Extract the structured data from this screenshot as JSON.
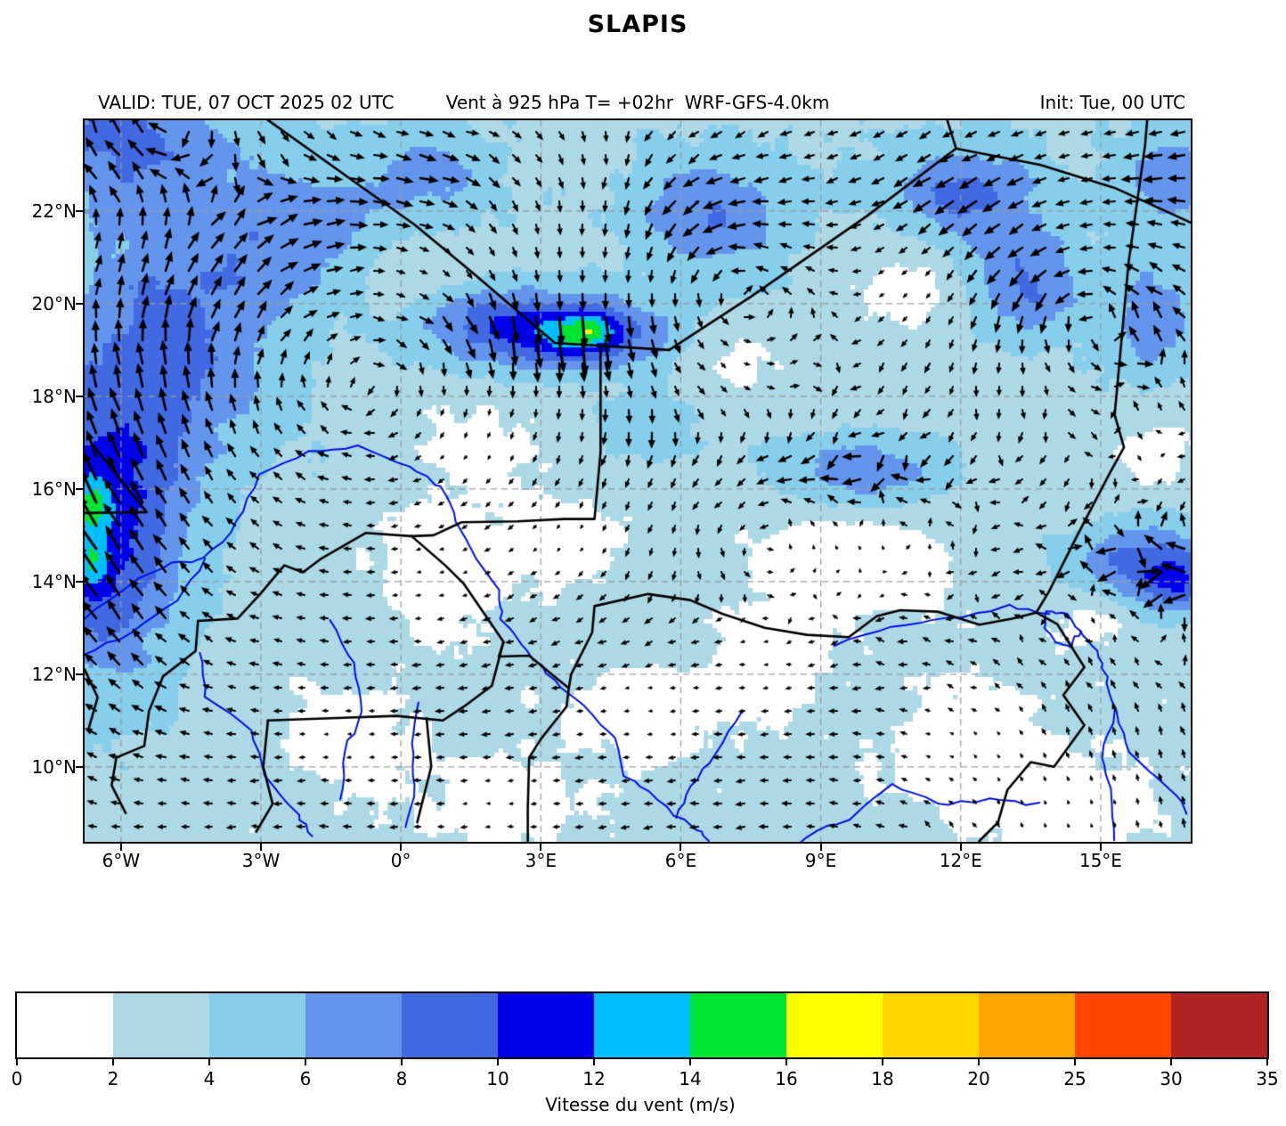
{
  "title": "SLAPIS",
  "header": {
    "valid": "VALID: TUE, 07 OCT 2025 02 UTC",
    "variable": "Vent à 925 hPa T= +02hr  WRF-GFS-4.0km",
    "init": "Init: Tue, 00 UTC"
  },
  "map": {
    "extent": {
      "lon_min": -6.78,
      "lon_max": 16.93,
      "lat_min": 8.38,
      "lat_max": 23.96
    },
    "x_ticks": [
      {
        "lon": -6,
        "label": "6°W"
      },
      {
        "lon": -3,
        "label": "3°W"
      },
      {
        "lon": 0,
        "label": "0°"
      },
      {
        "lon": 3,
        "label": "3°E"
      },
      {
        "lon": 6,
        "label": "6°E"
      },
      {
        "lon": 9,
        "label": "9°E"
      },
      {
        "lon": 12,
        "label": "12°E"
      },
      {
        "lon": 15,
        "label": "15°E"
      }
    ],
    "y_ticks": [
      {
        "lat": 22,
        "label": "22°N"
      },
      {
        "lat": 20,
        "label": "20°N"
      },
      {
        "lat": 18,
        "label": "18°N"
      },
      {
        "lat": 16,
        "label": "16°N"
      },
      {
        "lat": 14,
        "label": "14°N"
      },
      {
        "lat": 12,
        "label": "12°N"
      },
      {
        "lat": 10,
        "label": "10°N"
      }
    ],
    "grid_color": "#9a9a9a",
    "border_color": "#000000",
    "river_color": "#0010e0",
    "arrow_color": "#000000",
    "levels": [
      0,
      2,
      4,
      6,
      8,
      10,
      12,
      14,
      16,
      18,
      20,
      25,
      30,
      35
    ],
    "colors": [
      "#ffffff",
      "#add8e6",
      "#87ceeb",
      "#6495ed",
      "#4169e1",
      "#0000eb",
      "#00bfff",
      "#00e432",
      "#ffff00",
      "#ffd700",
      "#ffa500",
      "#ff4500",
      "#b22222"
    ],
    "speed_bumps": [
      {
        "lon": -6.3,
        "lat": 15.1,
        "sx": 1.7,
        "sy": 3.6,
        "a": 7.5
      },
      {
        "lon": -6.7,
        "lat": 15.6,
        "sx": 0.45,
        "sy": 0.7,
        "a": 4.5
      },
      {
        "lon": -6.6,
        "lat": 14.4,
        "sx": 0.4,
        "sy": 0.6,
        "a": 4.0
      },
      {
        "lon": -4.6,
        "lat": 19.5,
        "sx": 2.3,
        "sy": 3.2,
        "a": 4.5
      },
      {
        "lon": -2.0,
        "lat": 21.5,
        "sx": 1.8,
        "sy": 1.5,
        "a": 3.0
      },
      {
        "lon": -6.3,
        "lat": 23.6,
        "sx": 2.2,
        "sy": 1.4,
        "a": 4.5
      },
      {
        "lon": 3.6,
        "lat": 19.35,
        "sx": 2.0,
        "sy": 0.75,
        "a": 8.5
      },
      {
        "lon": 3.95,
        "lat": 19.4,
        "sx": 0.55,
        "sy": 0.4,
        "a": 4.5
      },
      {
        "lon": 1.5,
        "lat": 19.8,
        "sx": 1.5,
        "sy": 0.9,
        "a": 3.5
      },
      {
        "lon": 6.6,
        "lat": 21.9,
        "sx": 1.6,
        "sy": 1.3,
        "a": 4.5
      },
      {
        "lon": 12.1,
        "lat": 22.4,
        "sx": 1.6,
        "sy": 1.0,
        "a": 5.0
      },
      {
        "lon": 13.4,
        "lat": 20.4,
        "sx": 1.3,
        "sy": 1.2,
        "a": 4.8
      },
      {
        "lon": 16.5,
        "lat": 22.8,
        "sx": 1.2,
        "sy": 1.0,
        "a": 3.5
      },
      {
        "lon": 16.2,
        "lat": 19.6,
        "sx": 1.0,
        "sy": 1.6,
        "a": 3.8
      },
      {
        "lon": 15.9,
        "lat": 14.3,
        "sx": 1.6,
        "sy": 1.0,
        "a": 6.5
      },
      {
        "lon": 16.7,
        "lat": 13.9,
        "sx": 0.7,
        "sy": 0.6,
        "a": 3.5
      },
      {
        "lon": 9.9,
        "lat": 16.35,
        "sx": 2.0,
        "sy": 0.8,
        "a": 4.6
      },
      {
        "lon": 5.3,
        "lat": 17.4,
        "sx": 1.0,
        "sy": 0.8,
        "a": 2.5
      },
      {
        "lon": 0.5,
        "lat": 22.8,
        "sx": 1.5,
        "sy": 1.0,
        "a": 3.0
      }
    ],
    "speed_dips": [
      {
        "lon": 0.9,
        "lat": 14.2,
        "sx": 1.5,
        "sy": 1.2,
        "a": 2.3
      },
      {
        "lon": 3.7,
        "lat": 14.9,
        "sx": 1.1,
        "sy": 0.9,
        "a": 2.2
      },
      {
        "lon": 9.8,
        "lat": 14.5,
        "sx": 2.2,
        "sy": 1.1,
        "a": 2.6
      },
      {
        "lon": 0.4,
        "lat": 20.6,
        "sx": 1.4,
        "sy": 0.9,
        "a": 2.2
      },
      {
        "lon": 10.9,
        "lat": 20.3,
        "sx": 1.4,
        "sy": 1.0,
        "a": 2.4
      },
      {
        "lon": 5.2,
        "lat": 11.2,
        "sx": 1.6,
        "sy": 1.0,
        "a": 2.0
      },
      {
        "lon": 12.2,
        "lat": 10.3,
        "sx": 1.7,
        "sy": 1.3,
        "a": 2.4
      },
      {
        "lon": 14.6,
        "lat": 9.0,
        "sx": 1.6,
        "sy": 1.0,
        "a": 2.2
      },
      {
        "lon": -1.2,
        "lat": 10.6,
        "sx": 1.3,
        "sy": 1.0,
        "a": 2.0
      },
      {
        "lon": 2.2,
        "lat": 9.2,
        "sx": 1.6,
        "sy": 0.9,
        "a": 2.0
      },
      {
        "lon": 7.9,
        "lat": 12.4,
        "sx": 1.1,
        "sy": 0.9,
        "a": 1.9
      },
      {
        "lon": 14.9,
        "lat": 13.3,
        "sx": 1.0,
        "sy": 0.8,
        "a": 2.2
      },
      {
        "lon": 1.6,
        "lat": 16.9,
        "sx": 1.3,
        "sy": 1.0,
        "a": 2.2
      },
      {
        "lon": 7.3,
        "lat": 18.6,
        "sx": 1.0,
        "sy": 0.8,
        "a": 1.8
      },
      {
        "lon": 16.3,
        "lat": 16.8,
        "sx": 1.0,
        "sy": 1.2,
        "a": 1.8
      }
    ],
    "vortices": [
      {
        "name": "west-anticyclone",
        "lon": -0.7,
        "lat": 18.2,
        "sx": 5.5,
        "sy": 4.8,
        "s": 1.7,
        "dir": "cw"
      },
      {
        "name": "central-cyclone",
        "lon": 6.6,
        "lat": 20.4,
        "sx": 2.4,
        "sy": 2.0,
        "s": 1.5,
        "dir": "ccw"
      },
      {
        "name": "east-cyclone",
        "lon": 14.3,
        "lat": 20.8,
        "sx": 2.6,
        "sy": 2.3,
        "s": 1.4,
        "dir": "ccw"
      },
      {
        "name": "northwest-eddy",
        "lon": -5.3,
        "lat": 24.3,
        "sx": 2.8,
        "sy": 1.8,
        "s": 1.6,
        "dir": "cw"
      },
      {
        "name": "sahel-eddy",
        "lon": 7.4,
        "lat": 15.1,
        "sx": 2.0,
        "sy": 1.4,
        "s": 0.7,
        "dir": "ccw"
      }
    ],
    "flows": [
      {
        "name": "harmattan-northeast",
        "lon": 13.5,
        "lat": 22.5,
        "sx": 6.0,
        "sy": 4.0,
        "u": -1.0,
        "v": -0.45
      },
      {
        "name": "southern-easterly",
        "lon": 3.0,
        "lat": 10.0,
        "sx": 10.0,
        "sy": 2.6,
        "u": -0.95,
        "v": -0.05
      },
      {
        "name": "southeast-southerly",
        "lon": 15.0,
        "lat": 9.0,
        "sx": 3.2,
        "sy": 2.4,
        "u": -0.1,
        "v": 1.1
      },
      {
        "name": "west-northward",
        "lon": -6.5,
        "lat": 15.0,
        "sx": 2.2,
        "sy": 4.0,
        "u": -0.5,
        "v": 0.9
      },
      {
        "name": "central-southward-jet",
        "lon": 4.0,
        "lat": 20.5,
        "sx": 2.0,
        "sy": 2.0,
        "u": -0.2,
        "v": -1.0
      }
    ],
    "borders": [
      [
        [
          -2.9,
          24.0
        ],
        [
          0.3,
          21.7
        ],
        [
          1.5,
          20.7
        ],
        [
          3.3,
          19.15
        ],
        [
          5.75,
          19.0
        ]
      ],
      [
        [
          5.75,
          19.0
        ],
        [
          7.5,
          20.15
        ],
        [
          10.0,
          21.9
        ],
        [
          11.9,
          23.35
        ]
      ],
      [
        [
          11.9,
          23.35
        ],
        [
          11.7,
          24.0
        ]
      ],
      [
        [
          11.9,
          23.35
        ],
        [
          13.7,
          23.0
        ],
        [
          15.3,
          22.5
        ],
        [
          16.93,
          21.75
        ]
      ],
      [
        [
          4.28,
          19.05
        ],
        [
          4.28,
          16.8
        ],
        [
          4.15,
          15.35
        ],
        [
          3.5,
          15.35
        ],
        [
          2.5,
          15.3
        ],
        [
          1.3,
          15.28
        ],
        [
          0.7,
          15.0
        ],
        [
          0.23,
          14.98
        ]
      ],
      [
        [
          0.23,
          14.98
        ],
        [
          -0.75,
          15.05
        ],
        [
          -1.7,
          14.5
        ],
        [
          -2.1,
          14.2
        ],
        [
          -2.5,
          14.35
        ],
        [
          -3.0,
          13.75
        ],
        [
          -3.5,
          13.2
        ],
        [
          -4.35,
          13.15
        ],
        [
          -4.4,
          12.5
        ],
        [
          -5.1,
          11.95
        ],
        [
          -5.4,
          11.2
        ],
        [
          -5.5,
          10.45
        ],
        [
          -6.1,
          10.2
        ],
        [
          -6.2,
          9.6
        ],
        [
          -5.9,
          9.0
        ]
      ],
      [
        [
          0.23,
          14.98
        ],
        [
          0.95,
          14.35
        ],
        [
          1.35,
          13.95
        ],
        [
          2.2,
          12.7
        ],
        [
          2.1,
          12.38
        ]
      ],
      [
        [
          2.1,
          12.38
        ],
        [
          2.75,
          12.4
        ],
        [
          3.35,
          11.9
        ],
        [
          3.6,
          11.7
        ],
        [
          3.55,
          11.3
        ],
        [
          3.0,
          10.6
        ],
        [
          2.75,
          10.2
        ],
        [
          2.72,
          9.1
        ],
        [
          2.72,
          8.4
        ]
      ],
      [
        [
          -2.85,
          11.0
        ],
        [
          -1.5,
          11.05
        ],
        [
          -0.1,
          11.1
        ],
        [
          0.9,
          11.0
        ],
        [
          1.35,
          11.3
        ],
        [
          1.95,
          11.75
        ],
        [
          2.2,
          12.7
        ]
      ],
      [
        [
          -2.85,
          11.0
        ],
        [
          -2.95,
          10.0
        ],
        [
          -2.75,
          9.2
        ],
        [
          -3.1,
          8.6
        ]
      ],
      [
        [
          0.55,
          11.05
        ],
        [
          0.65,
          10.0
        ],
        [
          0.35,
          8.8
        ]
      ],
      [
        [
          3.6,
          11.7
        ],
        [
          3.65,
          12.0
        ],
        [
          4.1,
          12.9
        ],
        [
          4.15,
          13.47
        ],
        [
          5.3,
          13.73
        ],
        [
          6.2,
          13.6
        ],
        [
          6.9,
          13.3
        ],
        [
          7.8,
          13.0
        ],
        [
          8.7,
          12.85
        ],
        [
          9.6,
          12.8
        ],
        [
          10.2,
          13.25
        ],
        [
          10.7,
          13.38
        ],
        [
          11.5,
          13.35
        ],
        [
          12.4,
          13.07
        ],
        [
          13.1,
          13.2
        ],
        [
          13.62,
          13.33
        ]
      ],
      [
        [
          13.62,
          13.33
        ],
        [
          13.9,
          13.8
        ],
        [
          14.5,
          15.0
        ],
        [
          15.2,
          16.35
        ],
        [
          15.5,
          16.9
        ],
        [
          15.3,
          17.6
        ],
        [
          15.6,
          20.9
        ],
        [
          15.95,
          23.4
        ],
        [
          16.0,
          24.0
        ]
      ],
      [
        [
          13.62,
          13.33
        ],
        [
          14.07,
          13.08
        ],
        [
          14.65,
          12.15
        ],
        [
          14.2,
          11.55
        ],
        [
          14.65,
          10.9
        ],
        [
          14.0,
          10.0
        ],
        [
          13.5,
          10.1
        ],
        [
          13.0,
          9.5
        ],
        [
          12.8,
          8.8
        ],
        [
          12.4,
          8.4
        ]
      ],
      [
        [
          -6.78,
          15.48
        ],
        [
          -5.45,
          15.5
        ],
        [
          -6.6,
          16.95
        ]
      ],
      [
        [
          -6.78,
          12.1
        ],
        [
          -6.5,
          11.5
        ],
        [
          -6.7,
          10.8
        ]
      ]
    ],
    "rivers": [
      [
        [
          -6.78,
          13.2
        ],
        [
          -5.9,
          13.9
        ],
        [
          -4.9,
          14.4
        ],
        [
          -4.2,
          14.5
        ],
        [
          -3.5,
          15.3
        ],
        [
          -3.0,
          16.3
        ],
        [
          -2.0,
          16.8
        ],
        [
          -0.9,
          16.9
        ],
        [
          0.2,
          16.5
        ],
        [
          0.9,
          16.0
        ],
        [
          1.2,
          15.3
        ],
        [
          2.1,
          13.8
        ],
        [
          2.15,
          13.2
        ],
        [
          2.7,
          12.5
        ],
        [
          3.3,
          11.85
        ],
        [
          3.9,
          11.3
        ],
        [
          4.6,
          10.6
        ],
        [
          4.8,
          9.8
        ],
        [
          5.5,
          9.3
        ],
        [
          6.3,
          8.7
        ],
        [
          6.6,
          8.4
        ]
      ],
      [
        [
          -6.78,
          12.4
        ],
        [
          -5.8,
          12.9
        ],
        [
          -4.8,
          13.6
        ],
        [
          -4.2,
          14.5
        ]
      ],
      [
        [
          -4.3,
          12.5
        ],
        [
          -4.2,
          11.5
        ],
        [
          -3.2,
          10.8
        ],
        [
          -2.9,
          9.8
        ],
        [
          -2.2,
          9.0
        ],
        [
          -1.9,
          8.5
        ]
      ],
      [
        [
          -1.5,
          13.2
        ],
        [
          -1.0,
          12.2
        ],
        [
          -0.8,
          11.2
        ],
        [
          -1.2,
          10.3
        ],
        [
          -1.3,
          9.3
        ]
      ],
      [
        [
          0.4,
          11.4
        ],
        [
          0.2,
          10.5
        ],
        [
          0.3,
          9.6
        ],
        [
          0.1,
          8.7
        ]
      ],
      [
        [
          7.3,
          11.2
        ],
        [
          6.8,
          10.3
        ],
        [
          6.2,
          9.6
        ],
        [
          5.9,
          8.9
        ]
      ],
      [
        [
          9.3,
          12.6
        ],
        [
          10.5,
          13.0
        ],
        [
          11.7,
          13.2
        ],
        [
          13.0,
          13.45
        ],
        [
          13.9,
          13.3
        ]
      ],
      [
        [
          16.9,
          9.0
        ],
        [
          16.2,
          9.8
        ],
        [
          15.6,
          10.3
        ],
        [
          15.3,
          11.2
        ],
        [
          15.1,
          12.0
        ],
        [
          14.9,
          12.5
        ],
        [
          14.55,
          12.95
        ]
      ],
      [
        [
          15.3,
          8.4
        ],
        [
          15.2,
          9.5
        ],
        [
          15.0,
          10.2
        ],
        [
          15.3,
          11.2
        ]
      ],
      [
        [
          13.7,
          9.2
        ],
        [
          12.6,
          9.3
        ],
        [
          11.5,
          9.2
        ],
        [
          10.5,
          9.6
        ],
        [
          9.8,
          9.0
        ],
        [
          8.9,
          8.6
        ],
        [
          8.0,
          8.0
        ]
      ],
      [
        [
          13.85,
          13.35
        ],
        [
          14.3,
          13.3
        ],
        [
          14.55,
          12.95
        ],
        [
          14.35,
          12.6
        ],
        [
          14.0,
          12.7
        ],
        [
          13.8,
          13.0
        ],
        [
          13.85,
          13.35
        ]
      ]
    ]
  },
  "colorbar": {
    "tick_labels": [
      "0",
      "2",
      "4",
      "6",
      "8",
      "10",
      "12",
      "14",
      "16",
      "18",
      "20",
      "25",
      "30",
      "35"
    ],
    "label": "Vitesse du vent (m/s)"
  }
}
